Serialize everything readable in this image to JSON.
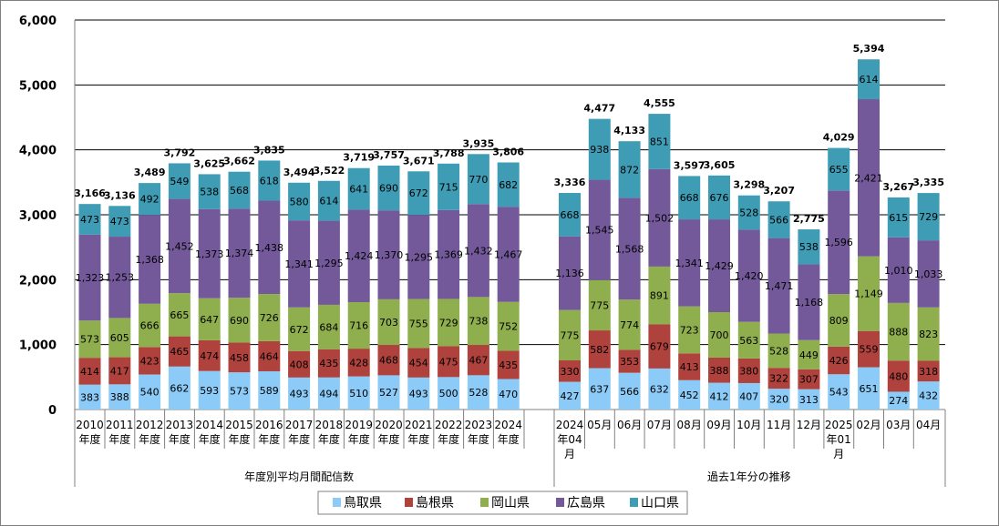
{
  "chart_data": {
    "type": "bar",
    "stacked": true,
    "ylim": [
      0,
      6000
    ],
    "yticks": [
      "0",
      "1,000",
      "2,000",
      "3,000",
      "4,000",
      "5,000",
      "6,000"
    ],
    "grid": true,
    "legend_position": "bottom",
    "categories": [
      [
        "2010",
        "年度"
      ],
      [
        "2011",
        "年度"
      ],
      [
        "2012",
        "年度"
      ],
      [
        "2013",
        "年度"
      ],
      [
        "2014",
        "年度"
      ],
      [
        "2015",
        "年度"
      ],
      [
        "2016",
        "年度"
      ],
      [
        "2017",
        "年度"
      ],
      [
        "2018",
        "年度"
      ],
      [
        "2019",
        "年度"
      ],
      [
        "2020",
        "年度"
      ],
      [
        "2021",
        "年度"
      ],
      [
        "2022",
        "年度"
      ],
      [
        "2023",
        "年度"
      ],
      [
        "2024",
        "年度"
      ],
      [
        "2024",
        "年04",
        "月"
      ],
      [
        "05月"
      ],
      [
        "06月"
      ],
      [
        "07月"
      ],
      [
        "08月"
      ],
      [
        "09月"
      ],
      [
        "10月"
      ],
      [
        "11月"
      ],
      [
        "12月"
      ],
      [
        "2025",
        "年01",
        "月"
      ],
      [
        "02月"
      ],
      [
        "03月"
      ],
      [
        "04月"
      ]
    ],
    "groups": [
      {
        "label": "年度別平均月間配信数",
        "start": 0,
        "end": 14
      },
      {
        "label": "過去1年分の推移",
        "start": 15,
        "end": 27
      }
    ],
    "series": [
      {
        "name": "鳥取県",
        "color": "#8ccbf7",
        "values": [
          383,
          388,
          540,
          662,
          593,
          573,
          589,
          493,
          494,
          510,
          527,
          493,
          500,
          528,
          470,
          427,
          637,
          566,
          632,
          452,
          412,
          407,
          320,
          313,
          543,
          651,
          274,
          432
        ]
      },
      {
        "name": "島根県",
        "color": "#b0423d",
        "values": [
          414,
          417,
          423,
          465,
          474,
          458,
          464,
          408,
          435,
          428,
          468,
          454,
          475,
          467,
          435,
          330,
          582,
          353,
          679,
          413,
          388,
          380,
          322,
          307,
          426,
          559,
          480,
          318
        ]
      },
      {
        "name": "岡山県",
        "color": "#8faf4e",
        "values": [
          573,
          605,
          666,
          665,
          647,
          690,
          726,
          672,
          684,
          716,
          703,
          755,
          729,
          738,
          752,
          775,
          775,
          774,
          891,
          723,
          700,
          563,
          528,
          449,
          809,
          1149,
          888,
          823
        ]
      },
      {
        "name": "広島県",
        "color": "#73599a",
        "values": [
          1323,
          1253,
          1368,
          1452,
          1373,
          1374,
          1438,
          1341,
          1295,
          1424,
          1370,
          1295,
          1369,
          1432,
          1467,
          1136,
          1545,
          1568,
          1502,
          1341,
          1429,
          1420,
          1471,
          1168,
          1596,
          2421,
          1010,
          1033
        ]
      },
      {
        "name": "山口県",
        "color": "#3f9cb5",
        "values": [
          473,
          473,
          492,
          549,
          538,
          568,
          618,
          580,
          614,
          641,
          690,
          672,
          715,
          770,
          682,
          668,
          938,
          872,
          851,
          668,
          676,
          528,
          566,
          538,
          655,
          614,
          615,
          729
        ]
      }
    ],
    "totals": [
      3166,
      3136,
      3489,
      3792,
      3625,
      3662,
      3835,
      3494,
      3522,
      3719,
      3757,
      3671,
      3788,
      3935,
      3806,
      3336,
      4477,
      4133,
      4555,
      3597,
      3605,
      3298,
      3207,
      2775,
      4029,
      5394,
      3267,
      3335
    ]
  }
}
